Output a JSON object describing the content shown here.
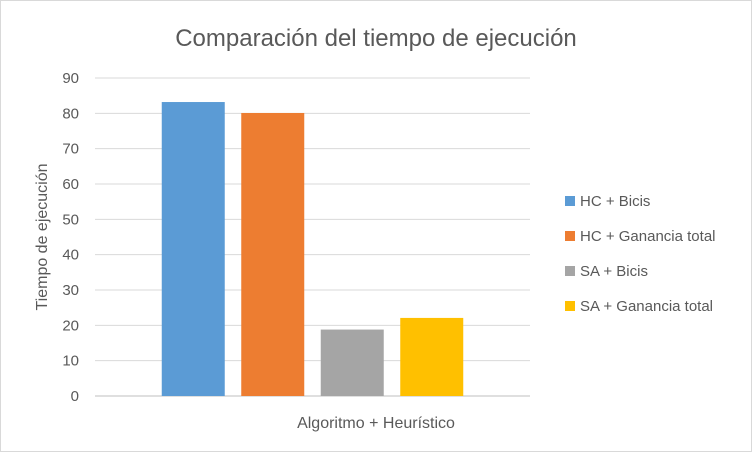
{
  "chart_data": {
    "type": "bar",
    "title": "Comparación del tiempo de ejecución",
    "xlabel": "Algoritmo + Heurístico",
    "ylabel": "Tiempo de ejecución",
    "categories": [
      "Algoritmo + Heurístico"
    ],
    "ylim": [
      0,
      90
    ],
    "yticks": [
      0,
      10,
      20,
      30,
      40,
      50,
      60,
      70,
      80,
      90
    ],
    "grid": true,
    "legend_position": "right",
    "series": [
      {
        "name": "HC + Bicis",
        "values": [
          83.2
        ],
        "color": "#5b9bd5"
      },
      {
        "name": "HC + Ganancia total",
        "values": [
          80.1
        ],
        "color": "#ed7d31"
      },
      {
        "name": "SA + Bicis",
        "values": [
          18.8
        ],
        "color": "#a5a5a5"
      },
      {
        "name": "SA + Ganancia total",
        "values": [
          22.1
        ],
        "color": "#ffc000"
      }
    ]
  }
}
